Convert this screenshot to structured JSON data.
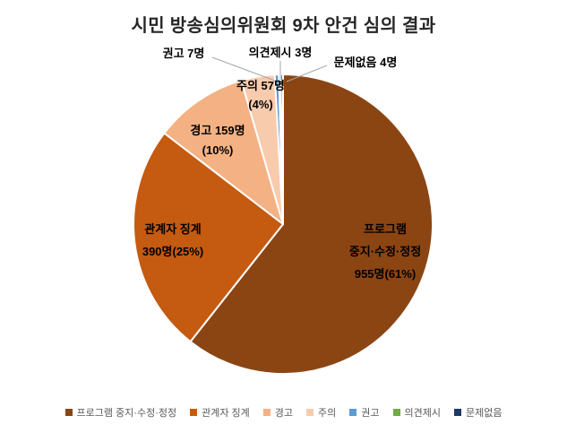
{
  "chart_data": {
    "type": "pie",
    "title": "시민 방송심의위원회 9차 안건 심의 결과",
    "unit": "명",
    "start_angle": "top",
    "direction": "clockwise",
    "legend_position": "bottom",
    "grid": false,
    "colors": {
      "leader_line": "#A6A6A6",
      "slice_border": "#FFFFFF",
      "title_text": "#262626",
      "legend_text": "#595959",
      "label_text": "#000000"
    },
    "slices": [
      {
        "id": "program-stop-edit-correct",
        "label": "프로그램 중지·수정·정정",
        "value": 955,
        "pct": "61%",
        "color": "#8B4513",
        "label_lines": [
          "프로그램",
          "중지·수정·정정",
          "955명(61%)"
        ]
      },
      {
        "id": "staff-discipline",
        "label": "관계자 징계",
        "value": 390,
        "pct": "25%",
        "color": "#C55A11",
        "label_lines": [
          "관계자 징계",
          "390명(25%)"
        ]
      },
      {
        "id": "warning",
        "label": "경고",
        "value": 159,
        "pct": "10%",
        "color": "#F4B183",
        "label_lines": [
          "경고 159명",
          "(10%)"
        ]
      },
      {
        "id": "caution",
        "label": "주의",
        "value": 57,
        "pct": "4%",
        "color": "#F8CBAD",
        "label_lines": [
          "주의 57명",
          "(4%)"
        ]
      },
      {
        "id": "recommendation",
        "label": "권고",
        "value": 7,
        "color": "#5B9BD5",
        "label_lines": [
          "권고 7명"
        ]
      },
      {
        "id": "opinion",
        "label": "의견제시",
        "value": 3,
        "color": "#70AD47",
        "label_lines": [
          "의견제시 3명"
        ]
      },
      {
        "id": "no-problem",
        "label": "문제없음",
        "value": 4,
        "color": "#1F3864",
        "label_lines": [
          "문제없음 4명"
        ]
      }
    ]
  }
}
